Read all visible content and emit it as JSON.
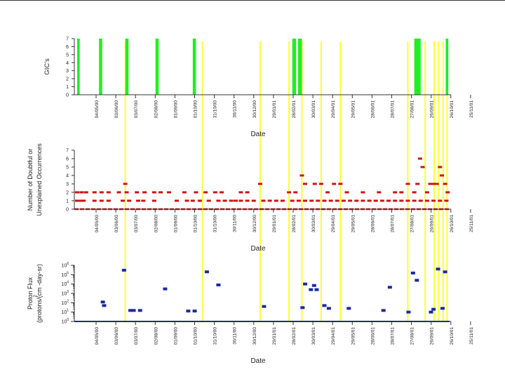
{
  "colors": {
    "gic_bar": "#22ee22",
    "event_line": "#ffff33",
    "doubtful_marker": "#cc1111",
    "flux_marker": "#1a2aa0",
    "flux_baseline": "#1a2aa0",
    "axis": "#333333",
    "text": "#222222"
  },
  "date_ticks": [
    "04/05/00",
    "03/06/00",
    "03/07/00",
    "02/08/00",
    "01/09/00",
    "01/10/00",
    "31/10/00",
    "30/11/00",
    "30/12/00",
    "29/01/01",
    "28/02/01",
    "30/03/01",
    "29/04/01",
    "29/05/01",
    "28/06/01",
    "28/07/01",
    "27/08/01",
    "26/09/01",
    "26/10/01",
    "25/11/01"
  ],
  "event_day_offsets": [
    50,
    170,
    260,
    305,
    325,
    355,
    385,
    490,
    517,
    531,
    538,
    545,
    551
  ],
  "chart_data": [
    {
      "type": "bar",
      "name": "gic",
      "title": "",
      "xlabel": "Date",
      "ylabel": "GIC's",
      "x_unit": "days since 04/05/00 (approx.)",
      "xlim": [
        -25,
        555
      ],
      "ylim": [
        0,
        7
      ],
      "yticks": [
        "0",
        "1",
        "2",
        "3",
        "4",
        "5",
        "6",
        "7"
      ],
      "bars": [
        {
          "start": -25,
          "end": -21,
          "value": 7
        },
        {
          "start": 9,
          "end": 14,
          "value": 7
        },
        {
          "start": 50,
          "end": 55,
          "value": 7
        },
        {
          "start": 97,
          "end": 102,
          "value": 7
        },
        {
          "start": 155,
          "end": 160,
          "value": 7
        },
        {
          "start": 310,
          "end": 316,
          "value": 7
        },
        {
          "start": 319,
          "end": 325,
          "value": 7
        },
        {
          "start": 500,
          "end": 510,
          "value": 7
        },
        {
          "start": 549,
          "end": 553,
          "value": 7
        }
      ]
    },
    {
      "type": "scatter",
      "name": "doubtful",
      "xlabel": "Date",
      "ylabel": [
        "Number of Doubtful or",
        "Unexplained Occurrences"
      ],
      "x_unit": "days since 04/05/00 (approx.)",
      "xlim": [
        -25,
        555
      ],
      "ylim": [
        0,
        7
      ],
      "yticks": [
        "0",
        "1",
        "2",
        "3",
        "4",
        "5",
        "6",
        "7"
      ],
      "baseline_value": 0,
      "points": [
        [
          -25,
          2
        ],
        [
          -18,
          2
        ],
        [
          -11,
          2
        ],
        [
          -22,
          1
        ],
        [
          -15,
          1
        ],
        [
          2,
          2
        ],
        [
          13,
          2
        ],
        [
          24,
          2
        ],
        [
          40,
          2
        ],
        [
          52,
          2
        ],
        [
          68,
          2
        ],
        [
          80,
          2
        ],
        [
          50,
          3
        ],
        [
          95,
          2
        ],
        [
          105,
          2
        ],
        [
          118,
          2
        ],
        [
          142,
          2
        ],
        [
          160,
          2
        ],
        [
          175,
          2
        ],
        [
          190,
          2
        ],
        [
          200,
          2
        ],
        [
          230,
          2
        ],
        [
          240,
          2
        ],
        [
          260,
          3
        ],
        [
          305,
          2
        ],
        [
          315,
          2
        ],
        [
          325,
          4
        ],
        [
          330,
          3
        ],
        [
          345,
          3
        ],
        [
          355,
          3
        ],
        [
          365,
          2
        ],
        [
          375,
          3
        ],
        [
          385,
          3
        ],
        [
          395,
          2
        ],
        [
          420,
          2
        ],
        [
          445,
          2
        ],
        [
          470,
          2
        ],
        [
          480,
          2
        ],
        [
          490,
          3
        ],
        [
          500,
          2
        ],
        [
          505,
          3
        ],
        [
          509,
          6
        ],
        [
          513,
          5
        ],
        [
          520,
          2
        ],
        [
          525,
          3
        ],
        [
          530,
          3
        ],
        [
          535,
          3
        ],
        [
          540,
          5
        ],
        [
          543,
          4
        ],
        [
          548,
          3
        ],
        [
          552,
          2
        ],
        [
          -25,
          1
        ],
        [
          -20,
          1
        ],
        [
          2,
          1
        ],
        [
          13,
          1
        ],
        [
          24,
          1
        ],
        [
          46,
          1
        ],
        [
          56,
          1
        ],
        [
          70,
          1
        ],
        [
          78,
          1
        ],
        [
          95,
          1
        ],
        [
          130,
          1
        ],
        [
          146,
          1
        ],
        [
          155,
          1
        ],
        [
          166,
          1
        ],
        [
          180,
          1
        ],
        [
          195,
          1
        ],
        [
          205,
          1
        ],
        [
          215,
          1
        ],
        [
          222,
          1
        ],
        [
          230,
          1
        ],
        [
          240,
          1
        ],
        [
          250,
          1
        ],
        [
          265,
          1
        ],
        [
          275,
          1
        ],
        [
          285,
          1
        ],
        [
          295,
          1
        ],
        [
          310,
          1
        ],
        [
          320,
          1
        ],
        [
          330,
          1
        ],
        [
          340,
          1
        ],
        [
          350,
          1
        ],
        [
          360,
          1
        ],
        [
          370,
          1
        ],
        [
          380,
          1
        ],
        [
          390,
          1
        ],
        [
          400,
          1
        ],
        [
          410,
          1
        ],
        [
          420,
          1
        ],
        [
          430,
          1
        ],
        [
          440,
          1
        ],
        [
          450,
          1
        ],
        [
          460,
          1
        ],
        [
          470,
          1
        ],
        [
          480,
          1
        ],
        [
          490,
          1
        ],
        [
          500,
          1
        ],
        [
          510,
          1
        ],
        [
          520,
          1
        ],
        [
          530,
          1
        ],
        [
          540,
          1
        ],
        [
          550,
          1
        ]
      ]
    },
    {
      "type": "scatter",
      "name": "proton_flux",
      "xlabel": "Date",
      "ylabel_line1": "Proton Flux",
      "ylabel_line2": "(protons/(cm  -day-sr)",
      "ylabel_sup": "2",
      "x_unit": "days since 04/05/00 (approx.)",
      "xlim": [
        -25,
        555
      ],
      "yscale": "log",
      "ylim_log10": [
        0,
        6
      ],
      "ytick_base": "10",
      "ytick_exponents": [
        "0",
        "1",
        "2",
        "3",
        "4",
        "5",
        "6"
      ],
      "baseline_value": 1,
      "points": [
        [
          15,
          120.0
        ],
        [
          17,
          50.0
        ],
        [
          48,
          300000.0
        ],
        [
          58,
          15.0
        ],
        [
          63,
          15.0
        ],
        [
          73,
          15.0
        ],
        [
          112,
          3000.0
        ],
        [
          148,
          13.0
        ],
        [
          158,
          13.0
        ],
        [
          177,
          200000.0
        ],
        [
          195,
          8000.0
        ],
        [
          266,
          40.0
        ],
        [
          326,
          30.0
        ],
        [
          330,
          10000.0
        ],
        [
          344,
          7000.0
        ],
        [
          339,
          2500.0
        ],
        [
          348,
          2500.0
        ],
        [
          360,
          50.0
        ],
        [
          367,
          25.0
        ],
        [
          398,
          25.0
        ],
        [
          452,
          15.0
        ],
        [
          462,
          4500.0
        ],
        [
          491,
          10.0
        ],
        [
          498,
          150000.0
        ],
        [
          504,
          25000.0
        ],
        [
          526,
          10.0
        ],
        [
          530,
          20.0
        ],
        [
          537,
          400000.0
        ],
        [
          544,
          25.0
        ],
        [
          548,
          200000.0
        ]
      ]
    }
  ]
}
